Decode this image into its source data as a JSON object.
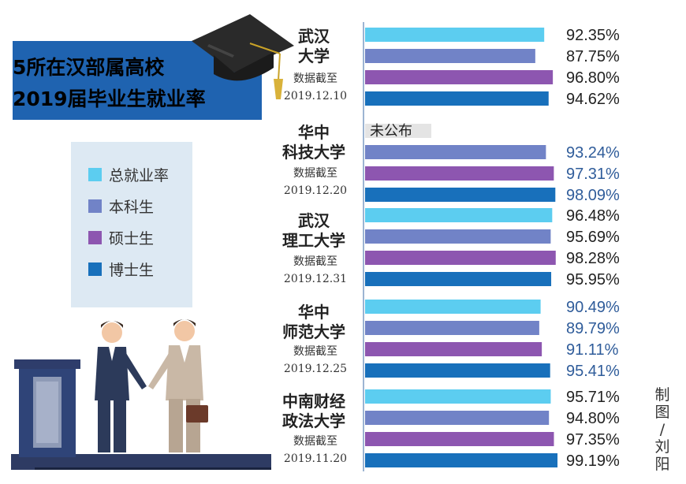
{
  "title": {
    "line1": "5所在汉部属高校",
    "line2": "2019届毕业生就业率"
  },
  "legend": [
    {
      "label": "总就业率",
      "color": "#5ccdf0"
    },
    {
      "label": "本科生",
      "color": "#7183c7"
    },
    {
      "label": "硕士生",
      "color": "#8d56b0"
    },
    {
      "label": "博士生",
      "color": "#1870bb"
    }
  ],
  "credit": "制图/刘阳",
  "not_published_label": "未公布",
  "colors": {
    "bar_axis": "#7c9cc4",
    "value_text_dark": "#222222",
    "value_text_blue": "#2f5c9a",
    "title_bg": "#1f63b0",
    "legend_bg": "#dde9f3"
  },
  "chart_data": {
    "type": "bar",
    "orientation": "horizontal",
    "series": [
      {
        "name": "总就业率",
        "values": [
          92.35,
          null,
          96.48,
          90.49,
          95.71
        ]
      },
      {
        "name": "本科生",
        "values": [
          87.75,
          93.24,
          95.69,
          89.79,
          94.8
        ]
      },
      {
        "name": "硕士生",
        "values": [
          96.8,
          97.31,
          98.28,
          91.11,
          97.35
        ]
      },
      {
        "name": "博士生",
        "values": [
          94.62,
          98.09,
          95.95,
          95.41,
          99.19
        ]
      }
    ],
    "value_labels": [
      [
        "92.35%",
        "87.75%",
        "96.80%",
        "94.62%"
      ],
      [
        "未公布",
        "93.24%",
        "97.31%",
        "98.09%"
      ],
      [
        "96.48%",
        "95.69%",
        "98.28%",
        "95.95%"
      ],
      [
        "90.49%",
        "89.79%",
        "91.11%",
        "95.41%"
      ],
      [
        "95.71%",
        "94.80%",
        "97.35%",
        "99.19%"
      ]
    ],
    "value_label_style": [
      "dark",
      "blue",
      "dark",
      "blue",
      "dark"
    ],
    "categories": [
      {
        "name_lines": [
          "武汉",
          "大学"
        ],
        "deadline_lines": [
          "数据截至",
          "2019.12.10"
        ]
      },
      {
        "name_lines": [
          "华中",
          "科技大学"
        ],
        "deadline_lines": [
          "数据截至",
          "2019.12.20"
        ]
      },
      {
        "name_lines": [
          "武汉",
          "理工大学"
        ],
        "deadline_lines": [
          "数据截至",
          "2019.12.31"
        ]
      },
      {
        "name_lines": [
          "华中",
          "师范大学"
        ],
        "deadline_lines": [
          "数据截至",
          "2019.12.25"
        ]
      },
      {
        "name_lines": [
          "中南财经",
          "政法大学"
        ],
        "deadline_lines": [
          "数据截至",
          "2019.11.20"
        ]
      }
    ]
  }
}
